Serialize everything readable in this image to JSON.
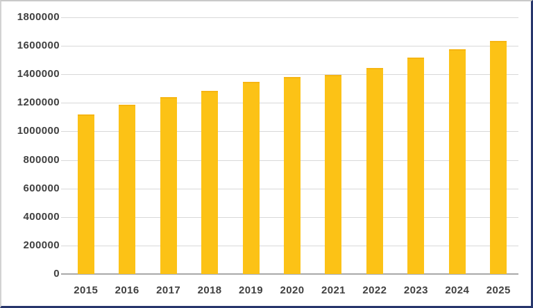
{
  "chart_data": {
    "type": "bar",
    "title": "",
    "xlabel": "",
    "ylabel": "",
    "categories": [
      "2015",
      "2016",
      "2017",
      "2018",
      "2019",
      "2020",
      "2021",
      "2022",
      "2023",
      "2024",
      "2025"
    ],
    "values": [
      1120000,
      1185000,
      1240000,
      1285000,
      1350000,
      1380000,
      1395000,
      1445000,
      1520000,
      1575000,
      1635000
    ],
    "ylim": [
      0,
      1800000
    ],
    "ytick_step": 200000,
    "ytick_labels": [
      "0",
      "200000",
      "400000",
      "600000",
      "800000",
      "1000000",
      "1200000",
      "1400000",
      "1600000",
      "1800000"
    ],
    "grid": "horizontal",
    "legend": "none",
    "bar_color": "#fcc216",
    "gridline_color": "#d8d8d8",
    "axis_text_color": "#404040",
    "frame_border_color": "#26356b"
  }
}
